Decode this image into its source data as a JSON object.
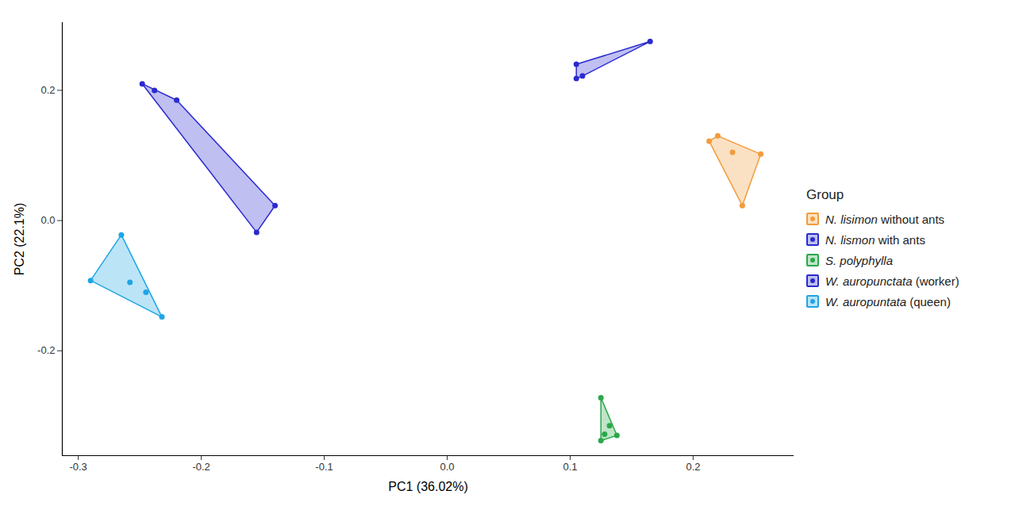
{
  "chart_data": {
    "type": "scatter",
    "x_label": "PC1 (36.02%)",
    "y_label": "PC2 (22.1%)",
    "xlim": [
      -0.313,
      0.282
    ],
    "ylim": [
      -0.361,
      0.304
    ],
    "xticks": [
      -0.3,
      -0.2,
      -0.1,
      {
        "value": 0,
        "label": "0.0"
      },
      0.1,
      0.2
    ],
    "yticks": [
      -0.2,
      {
        "value": 0,
        "label": "0.0"
      },
      0.2
    ],
    "grid": false,
    "legend": "right",
    "legend_title": "Group",
    "series": [
      {
        "name": "N. lisimon without ants",
        "color": "#f39c3a",
        "x": [
          0.213,
          0.22,
          0.232,
          0.255,
          0.24
        ],
        "y": [
          0.122,
          0.13,
          0.105,
          0.102,
          0.023
        ]
      },
      {
        "name": "N. lismon with ants",
        "color": "#2a2ad0",
        "x": [
          0.105,
          0.105,
          0.11,
          0.165
        ],
        "y": [
          0.24,
          0.218,
          0.222,
          0.275
        ]
      },
      {
        "name": "S. polyphylla",
        "color": "#2aa84a",
        "x": [
          0.125,
          0.128,
          0.132,
          0.138,
          0.125
        ],
        "y": [
          -0.272,
          -0.328,
          -0.315,
          -0.33,
          -0.338
        ]
      },
      {
        "name": "W. auropunctata (worker)",
        "color": "#2a2ad0",
        "x": [
          -0.248,
          -0.238,
          -0.22,
          -0.14,
          -0.155
        ],
        "y": [
          0.21,
          0.2,
          0.185,
          0.023,
          -0.018
        ]
      },
      {
        "name": "W. auropuntata (queen)",
        "color": "#1fa5e6",
        "x": [
          -0.265,
          -0.29,
          -0.258,
          -0.245,
          -0.232
        ],
        "y": [
          -0.022,
          -0.092,
          -0.095,
          -0.11,
          -0.148
        ]
      }
    ]
  }
}
